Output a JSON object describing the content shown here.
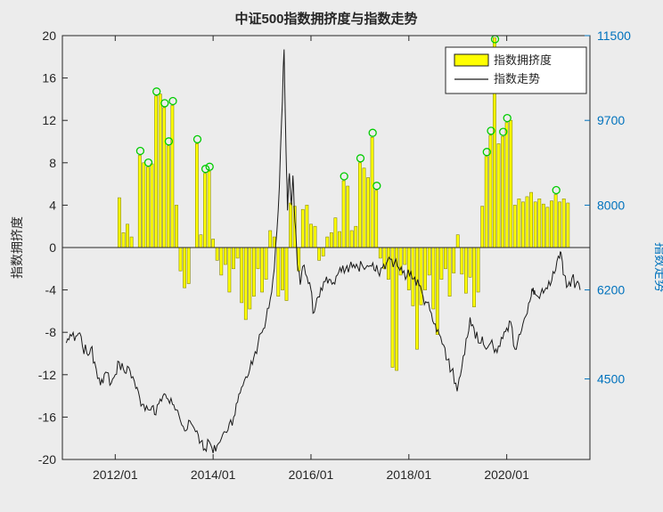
{
  "title": "中证500指数拥挤度与指数走势",
  "left_axis": {
    "label": "指数拥挤度",
    "ticks": [
      -20,
      -16,
      -12,
      -8,
      -4,
      0,
      4,
      8,
      12,
      16,
      20
    ],
    "min": -20,
    "max": 20
  },
  "right_axis": {
    "label": "指数走势",
    "tick_labels": [
      "11500",
      "9700",
      "8000",
      "6200",
      "4500"
    ],
    "tick_pos": [
      0.0,
      0.2,
      0.4,
      0.6,
      0.81
    ],
    "color": "#0072bd"
  },
  "x_axis": {
    "tick_labels": [
      "2012/01",
      "2014/01",
      "2016/01",
      "2018/01",
      "2020/01"
    ],
    "tick_years": [
      2012,
      2014,
      2016,
      2018,
      2020
    ],
    "min": 2010.92,
    "max": 2021.7
  },
  "legend": {
    "items": [
      {
        "label": "指数拥挤度",
        "type": "bar"
      },
      {
        "label": "指数走势",
        "type": "line"
      }
    ]
  },
  "colors": {
    "background": "#ececec",
    "plot_background": "#ececec",
    "bar_fill": "#ffff00",
    "bar_edge": "#8a8a00",
    "line": "#1a1a1a",
    "peak_marker": "#00cc00",
    "axis": "#262626",
    "right_axis_text": "#0072bd",
    "legend_background": "#ffffff"
  },
  "chart_data": {
    "type": "bar+line",
    "title": "中证500指数拥挤度与指数走势",
    "x_unit": "fractional year (monthly samples)",
    "left_ylim": [
      -20,
      20
    ],
    "grid": false,
    "legend_position": "top-right-inside",
    "series": [
      {
        "name": "指数拥挤度",
        "type": "bar",
        "axis": "left",
        "points_format": "[year, value, peak_marker(0|1 green circle)]",
        "points": [
          [
            2012.083,
            4.7,
            0
          ],
          [
            2012.167,
            1.4,
            0
          ],
          [
            2012.25,
            2.2,
            0
          ],
          [
            2012.333,
            1.0,
            0
          ],
          [
            2012.5,
            8.7,
            1
          ],
          [
            2012.583,
            8.0,
            0
          ],
          [
            2012.667,
            7.6,
            1
          ],
          [
            2012.75,
            7.9,
            0
          ],
          [
            2012.833,
            14.3,
            1
          ],
          [
            2012.917,
            14.5,
            0
          ],
          [
            2013.0,
            13.2,
            1
          ],
          [
            2013.083,
            9.6,
            1
          ],
          [
            2013.167,
            13.4,
            1
          ],
          [
            2013.25,
            4.0,
            0
          ],
          [
            2013.333,
            -2.2,
            0
          ],
          [
            2013.417,
            -3.8,
            0
          ],
          [
            2013.5,
            -3.4,
            0
          ],
          [
            2013.667,
            9.8,
            1
          ],
          [
            2013.75,
            1.2,
            0
          ],
          [
            2013.833,
            7.0,
            1
          ],
          [
            2013.917,
            7.2,
            1
          ],
          [
            2014.0,
            0.8,
            0
          ],
          [
            2014.083,
            -1.2,
            0
          ],
          [
            2014.167,
            -2.6,
            0
          ],
          [
            2014.25,
            -1.6,
            0
          ],
          [
            2014.333,
            -4.2,
            0
          ],
          [
            2014.417,
            -2.0,
            0
          ],
          [
            2014.5,
            -1.0,
            0
          ],
          [
            2014.583,
            -5.2,
            0
          ],
          [
            2014.667,
            -6.8,
            0
          ],
          [
            2014.75,
            -5.8,
            0
          ],
          [
            2014.833,
            -4.6,
            0
          ],
          [
            2014.917,
            -2.0,
            0
          ],
          [
            2015.0,
            -4.2,
            0
          ],
          [
            2015.083,
            -3.0,
            0
          ],
          [
            2015.167,
            1.6,
            0
          ],
          [
            2015.25,
            1.0,
            0
          ],
          [
            2015.333,
            -4.6,
            0
          ],
          [
            2015.417,
            -4.0,
            0
          ],
          [
            2015.5,
            -5.0,
            0
          ],
          [
            2015.583,
            4.2,
            0
          ],
          [
            2015.667,
            3.9,
            0
          ],
          [
            2015.75,
            -2.2,
            0
          ],
          [
            2015.833,
            3.6,
            0
          ],
          [
            2015.917,
            4.0,
            0
          ],
          [
            2016.0,
            2.2,
            0
          ],
          [
            2016.083,
            2.0,
            0
          ],
          [
            2016.167,
            -1.2,
            0
          ],
          [
            2016.25,
            -0.8,
            0
          ],
          [
            2016.333,
            1.0,
            0
          ],
          [
            2016.417,
            1.4,
            0
          ],
          [
            2016.5,
            2.8,
            0
          ],
          [
            2016.583,
            1.5,
            0
          ],
          [
            2016.667,
            6.3,
            1
          ],
          [
            2016.75,
            5.8,
            0
          ],
          [
            2016.833,
            1.6,
            0
          ],
          [
            2016.917,
            2.0,
            0
          ],
          [
            2017.0,
            8.0,
            1
          ],
          [
            2017.083,
            7.5,
            0
          ],
          [
            2017.167,
            6.6,
            0
          ],
          [
            2017.25,
            10.4,
            1
          ],
          [
            2017.333,
            5.4,
            1
          ],
          [
            2017.417,
            -1.0,
            0
          ],
          [
            2017.5,
            -2.0,
            0
          ],
          [
            2017.583,
            -3.0,
            0
          ],
          [
            2017.667,
            -11.3,
            0
          ],
          [
            2017.75,
            -11.6,
            0
          ],
          [
            2017.833,
            -2.6,
            0
          ],
          [
            2017.917,
            -1.6,
            0
          ],
          [
            2018.0,
            -4.0,
            0
          ],
          [
            2018.083,
            -5.5,
            0
          ],
          [
            2018.167,
            -9.6,
            0
          ],
          [
            2018.25,
            -5.4,
            0
          ],
          [
            2018.333,
            -4.0,
            0
          ],
          [
            2018.417,
            -2.6,
            0
          ],
          [
            2018.5,
            -5.8,
            0
          ],
          [
            2018.583,
            -8.2,
            0
          ],
          [
            2018.667,
            -3.0,
            0
          ],
          [
            2018.75,
            -2.0,
            0
          ],
          [
            2018.833,
            -4.6,
            0
          ],
          [
            2018.917,
            -2.4,
            0
          ],
          [
            2019.0,
            1.2,
            0
          ],
          [
            2019.083,
            -2.5,
            0
          ],
          [
            2019.167,
            -4.3,
            0
          ],
          [
            2019.25,
            -2.8,
            0
          ],
          [
            2019.333,
            -5.6,
            0
          ],
          [
            2019.417,
            -4.2,
            0
          ],
          [
            2019.5,
            3.9,
            0
          ],
          [
            2019.583,
            8.6,
            1
          ],
          [
            2019.667,
            10.6,
            1
          ],
          [
            2019.75,
            19.8,
            1
          ],
          [
            2019.833,
            9.8,
            0
          ],
          [
            2019.917,
            10.5,
            1
          ],
          [
            2020.0,
            11.8,
            1
          ],
          [
            2020.083,
            12.0,
            0
          ],
          [
            2020.167,
            4.0,
            0
          ],
          [
            2020.25,
            4.6,
            0
          ],
          [
            2020.333,
            4.3,
            0
          ],
          [
            2020.417,
            4.8,
            0
          ],
          [
            2020.5,
            5.2,
            0
          ],
          [
            2020.583,
            4.3,
            0
          ],
          [
            2020.667,
            4.6,
            0
          ],
          [
            2020.75,
            4.1,
            0
          ],
          [
            2020.833,
            3.8,
            0
          ],
          [
            2020.917,
            4.4,
            0
          ],
          [
            2021.0,
            5.0,
            1
          ],
          [
            2021.083,
            4.3,
            0
          ],
          [
            2021.167,
            4.6,
            0
          ],
          [
            2021.25,
            4.2,
            0
          ]
        ]
      },
      {
        "name": "指数走势",
        "type": "line",
        "axis": "right",
        "y_in_left_axis_units": true,
        "points": [
          [
            2011.0,
            -9.0
          ],
          [
            2011.08,
            -8.2
          ],
          [
            2011.17,
            -8.8
          ],
          [
            2011.25,
            -8.1
          ],
          [
            2011.33,
            -9.3
          ],
          [
            2011.42,
            -10.0
          ],
          [
            2011.5,
            -9.5
          ],
          [
            2011.58,
            -10.8
          ],
          [
            2011.67,
            -12.3
          ],
          [
            2011.75,
            -12.8
          ],
          [
            2011.83,
            -11.8
          ],
          [
            2011.92,
            -12.8
          ],
          [
            2012.0,
            -12.0
          ],
          [
            2012.08,
            -10.8
          ],
          [
            2012.17,
            -11.5
          ],
          [
            2012.25,
            -11.2
          ],
          [
            2012.33,
            -12.3
          ],
          [
            2012.42,
            -13.3
          ],
          [
            2012.5,
            -14.2
          ],
          [
            2012.58,
            -14.8
          ],
          [
            2012.67,
            -15.3
          ],
          [
            2012.75,
            -15.0
          ],
          [
            2012.83,
            -15.8
          ],
          [
            2012.92,
            -14.3
          ],
          [
            2013.0,
            -13.8
          ],
          [
            2013.08,
            -14.3
          ],
          [
            2013.17,
            -14.8
          ],
          [
            2013.25,
            -15.3
          ],
          [
            2013.33,
            -16.3
          ],
          [
            2013.42,
            -17.3
          ],
          [
            2013.5,
            -16.3
          ],
          [
            2013.58,
            -16.8
          ],
          [
            2013.67,
            -17.3
          ],
          [
            2013.75,
            -18.3
          ],
          [
            2013.83,
            -19.0
          ],
          [
            2013.92,
            -18.3
          ],
          [
            2014.0,
            -19.4
          ],
          [
            2014.08,
            -18.7
          ],
          [
            2014.17,
            -18.0
          ],
          [
            2014.25,
            -17.4
          ],
          [
            2014.33,
            -16.6
          ],
          [
            2014.42,
            -16.0
          ],
          [
            2014.5,
            -14.6
          ],
          [
            2014.58,
            -13.2
          ],
          [
            2014.67,
            -12.2
          ],
          [
            2014.75,
            -11.5
          ],
          [
            2014.83,
            -10.4
          ],
          [
            2014.92,
            -9.0
          ],
          [
            2015.0,
            -8.0
          ],
          [
            2015.08,
            -6.8
          ],
          [
            2015.17,
            -4.8
          ],
          [
            2015.25,
            -2.0
          ],
          [
            2015.33,
            3.5
          ],
          [
            2015.4,
            12.0
          ],
          [
            2015.45,
            18.7
          ],
          [
            2015.49,
            9.0
          ],
          [
            2015.52,
            3.5
          ],
          [
            2015.56,
            7.0
          ],
          [
            2015.6,
            4.0
          ],
          [
            2015.63,
            6.8
          ],
          [
            2015.67,
            2.5
          ],
          [
            2015.72,
            -1.5
          ],
          [
            2015.78,
            -3.5
          ],
          [
            2015.83,
            -1.8
          ],
          [
            2015.92,
            -2.8
          ],
          [
            2016.0,
            -4.0
          ],
          [
            2016.04,
            -6.2
          ],
          [
            2016.12,
            -4.8
          ],
          [
            2016.2,
            -3.8
          ],
          [
            2016.29,
            -3.2
          ],
          [
            2016.37,
            -3.0
          ],
          [
            2016.46,
            -3.3
          ],
          [
            2016.54,
            -2.6
          ],
          [
            2016.62,
            -2.3
          ],
          [
            2016.71,
            -2.0
          ],
          [
            2016.79,
            -1.8
          ],
          [
            2016.87,
            -1.6
          ],
          [
            2016.96,
            -1.9
          ],
          [
            2017.04,
            -1.6
          ],
          [
            2017.12,
            -1.9
          ],
          [
            2017.21,
            -1.7
          ],
          [
            2017.29,
            -2.1
          ],
          [
            2017.37,
            -2.3
          ],
          [
            2017.46,
            -1.9
          ],
          [
            2017.54,
            -1.5
          ],
          [
            2017.62,
            -1.1
          ],
          [
            2017.71,
            -1.4
          ],
          [
            2017.79,
            -1.9
          ],
          [
            2017.87,
            -2.4
          ],
          [
            2017.96,
            -2.7
          ],
          [
            2018.04,
            -2.3
          ],
          [
            2018.12,
            -2.8
          ],
          [
            2018.21,
            -3.6
          ],
          [
            2018.29,
            -4.6
          ],
          [
            2018.37,
            -5.2
          ],
          [
            2018.46,
            -6.2
          ],
          [
            2018.54,
            -7.2
          ],
          [
            2018.62,
            -8.2
          ],
          [
            2018.71,
            -9.2
          ],
          [
            2018.79,
            -10.6
          ],
          [
            2018.87,
            -11.6
          ],
          [
            2018.96,
            -12.8
          ],
          [
            2019.0,
            -13.2
          ],
          [
            2019.08,
            -11.4
          ],
          [
            2019.17,
            -8.6
          ],
          [
            2019.25,
            -6.6
          ],
          [
            2019.33,
            -7.6
          ],
          [
            2019.42,
            -9.0
          ],
          [
            2019.5,
            -8.4
          ],
          [
            2019.58,
            -9.6
          ],
          [
            2019.67,
            -9.0
          ],
          [
            2019.75,
            -9.9
          ],
          [
            2019.83,
            -9.3
          ],
          [
            2019.92,
            -8.6
          ],
          [
            2020.0,
            -7.6
          ],
          [
            2020.08,
            -7.0
          ],
          [
            2020.17,
            -9.6
          ],
          [
            2020.25,
            -8.2
          ],
          [
            2020.33,
            -7.2
          ],
          [
            2020.42,
            -6.2
          ],
          [
            2020.5,
            -4.6
          ],
          [
            2020.54,
            -3.8
          ],
          [
            2020.58,
            -4.4
          ],
          [
            2020.67,
            -4.8
          ],
          [
            2020.75,
            -4.3
          ],
          [
            2020.83,
            -3.9
          ],
          [
            2020.92,
            -3.1
          ],
          [
            2021.0,
            -2.1
          ],
          [
            2021.08,
            -1.0
          ],
          [
            2021.12,
            -0.8
          ],
          [
            2021.17,
            -2.6
          ],
          [
            2021.25,
            -3.6
          ],
          [
            2021.33,
            -2.9
          ],
          [
            2021.42,
            -3.4
          ],
          [
            2021.5,
            -4.0
          ]
        ]
      }
    ]
  }
}
